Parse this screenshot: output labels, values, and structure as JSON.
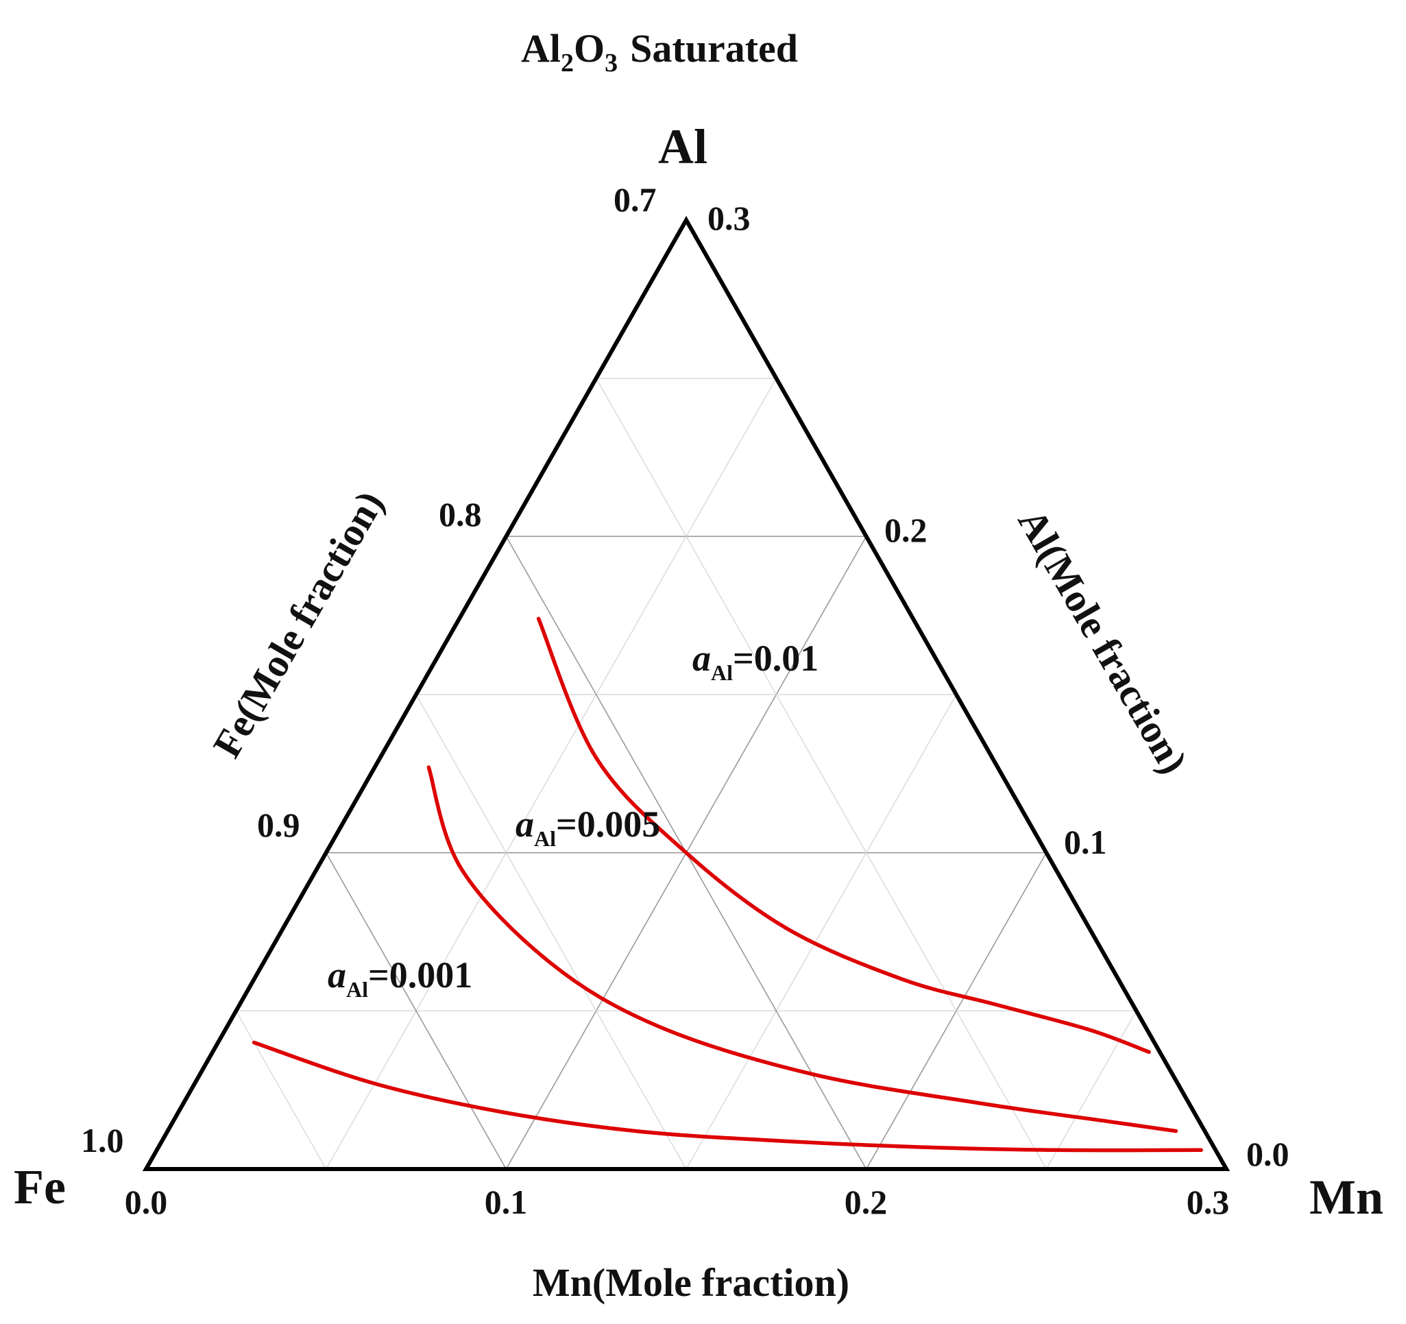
{
  "chart_data": {
    "type": "ternary",
    "title": "Saturated",
    "title_formula": {
      "a": "Al",
      "a_sub": "2",
      "b": "O",
      "b_sub": "3"
    },
    "vertices": {
      "top": "Al",
      "left": "Fe",
      "right": "Mn"
    },
    "axes": {
      "fe": {
        "label": "Fe(Mole fraction)",
        "range": [
          0.7,
          1.0
        ],
        "ticks": [
          "0.7",
          "0.8",
          "0.9",
          "1.0"
        ]
      },
      "al": {
        "label": "Al(Mole fraction)",
        "range": [
          0.0,
          0.3
        ],
        "ticks": [
          "0.3",
          "0.2",
          "0.1",
          "0.0"
        ]
      },
      "mn": {
        "label": "Mn(Mole fraction)",
        "range": [
          0.0,
          0.3
        ],
        "ticks": [
          "0.0",
          "0.1",
          "0.2",
          "0.3"
        ]
      }
    },
    "grid": true,
    "color": "#dd0000",
    "series": [
      {
        "name": "a_Al=0.01",
        "label": {
          "italic": "a",
          "sub": "Al",
          "text": "=0.01"
        },
        "points": [
          {
            "mn": 0.022,
            "al": 0.174
          },
          {
            "mn": 0.06,
            "al": 0.13
          },
          {
            "mn": 0.1,
            "al": 0.1
          },
          {
            "mn": 0.14,
            "al": 0.076
          },
          {
            "mn": 0.18,
            "al": 0.06
          },
          {
            "mn": 0.21,
            "al": 0.052
          },
          {
            "mn": 0.24,
            "al": 0.044
          },
          {
            "mn": 0.26,
            "al": 0.037
          }
        ]
      },
      {
        "name": "a_Al=0.005",
        "label": {
          "italic": "a",
          "sub": "Al",
          "text": "=0.005"
        },
        "points": [
          {
            "mn": 0.015,
            "al": 0.127
          },
          {
            "mn": 0.04,
            "al": 0.095
          },
          {
            "mn": 0.08,
            "al": 0.065
          },
          {
            "mn": 0.12,
            "al": 0.045
          },
          {
            "mn": 0.17,
            "al": 0.03
          },
          {
            "mn": 0.22,
            "al": 0.021
          },
          {
            "mn": 0.26,
            "al": 0.015
          },
          {
            "mn": 0.28,
            "al": 0.012
          }
        ]
      },
      {
        "name": "a_Al=0.001",
        "label": {
          "italic": "a",
          "sub": "Al",
          "text": "=0.001"
        },
        "points": [
          {
            "mn": 0.01,
            "al": 0.04
          },
          {
            "mn": 0.05,
            "al": 0.027
          },
          {
            "mn": 0.09,
            "al": 0.018
          },
          {
            "mn": 0.13,
            "al": 0.012
          },
          {
            "mn": 0.17,
            "al": 0.009
          },
          {
            "mn": 0.21,
            "al": 0.007
          },
          {
            "mn": 0.25,
            "al": 0.006
          },
          {
            "mn": 0.29,
            "al": 0.006
          }
        ]
      }
    ]
  }
}
